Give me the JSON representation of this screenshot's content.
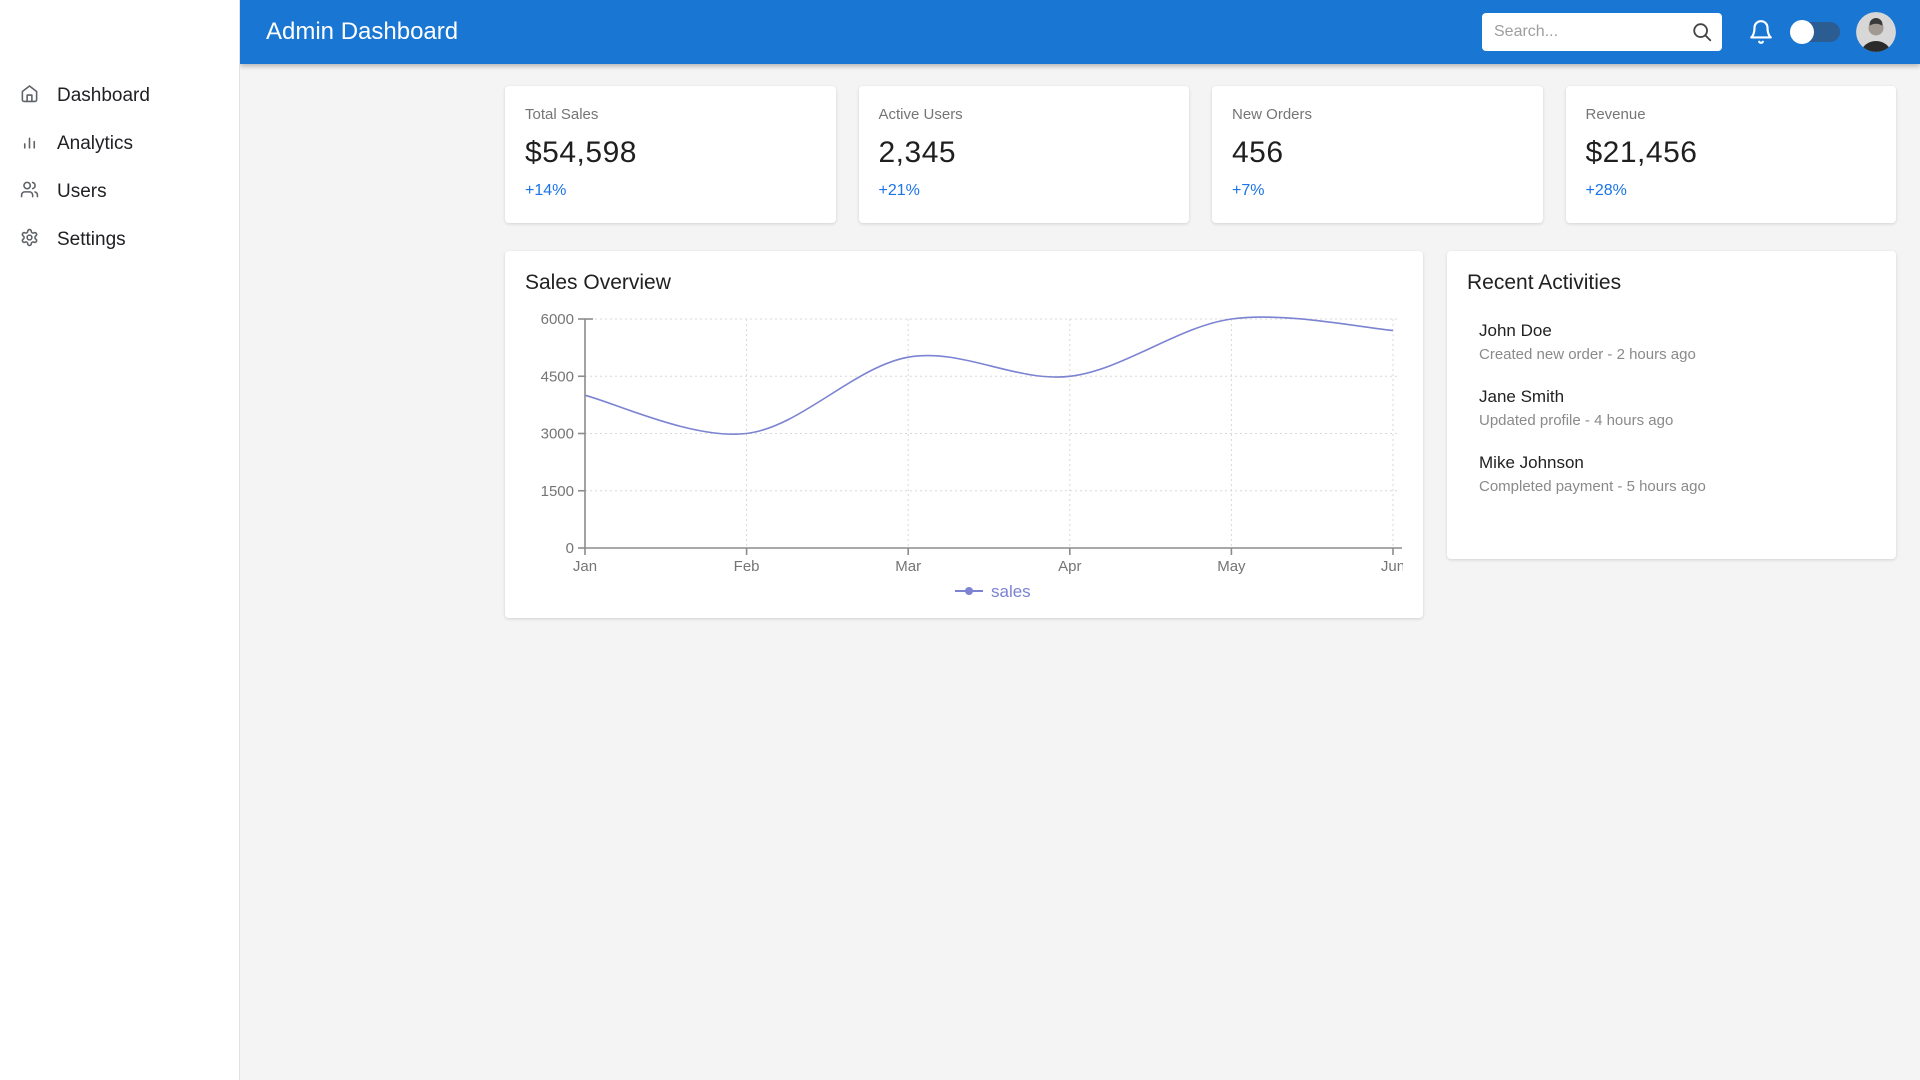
{
  "header": {
    "title": "Admin Dashboard",
    "search": {
      "placeholder": "Search..."
    }
  },
  "sidebar": {
    "items": [
      {
        "label": "Dashboard",
        "icon": "home-icon"
      },
      {
        "label": "Analytics",
        "icon": "bar-chart-icon"
      },
      {
        "label": "Users",
        "icon": "users-icon"
      },
      {
        "label": "Settings",
        "icon": "gear-icon"
      }
    ]
  },
  "stats": [
    {
      "title": "Total Sales",
      "value": "$54,598",
      "change": "+14%"
    },
    {
      "title": "Active Users",
      "value": "2,345",
      "change": "+21%"
    },
    {
      "title": "New Orders",
      "value": "456",
      "change": "+7%"
    },
    {
      "title": "Revenue",
      "value": "$21,456",
      "change": "+28%"
    }
  ],
  "sales_overview": {
    "title": "Sales Overview"
  },
  "chart_data": {
    "type": "line",
    "title": "Sales Overview",
    "categories": [
      "Jan",
      "Feb",
      "Mar",
      "Apr",
      "May",
      "Jun"
    ],
    "series": [
      {
        "name": "sales",
        "values": [
          4000,
          3000,
          5000,
          4500,
          6000,
          5700
        ]
      }
    ],
    "xlabel": "",
    "ylabel": "",
    "ylim": [
      0,
      6000
    ],
    "yticks": [
      0,
      1500,
      3000,
      4500,
      6000
    ],
    "grid": "dotted",
    "smooth": true,
    "legend_position": "bottom",
    "line_color": "#7b83d2"
  },
  "activities": {
    "title": "Recent Activities",
    "items": [
      {
        "name": "John Doe",
        "detail": "Created new order - 2 hours ago"
      },
      {
        "name": "Jane Smith",
        "detail": "Updated profile - 4 hours ago"
      },
      {
        "name": "Mike Johnson",
        "detail": "Completed payment - 5 hours ago"
      }
    ]
  },
  "colors": {
    "header_bg": "#1976d2",
    "accent_blue": "#1a73e8",
    "line": "#7b83d2",
    "page_bg": "#f4f4f4"
  }
}
